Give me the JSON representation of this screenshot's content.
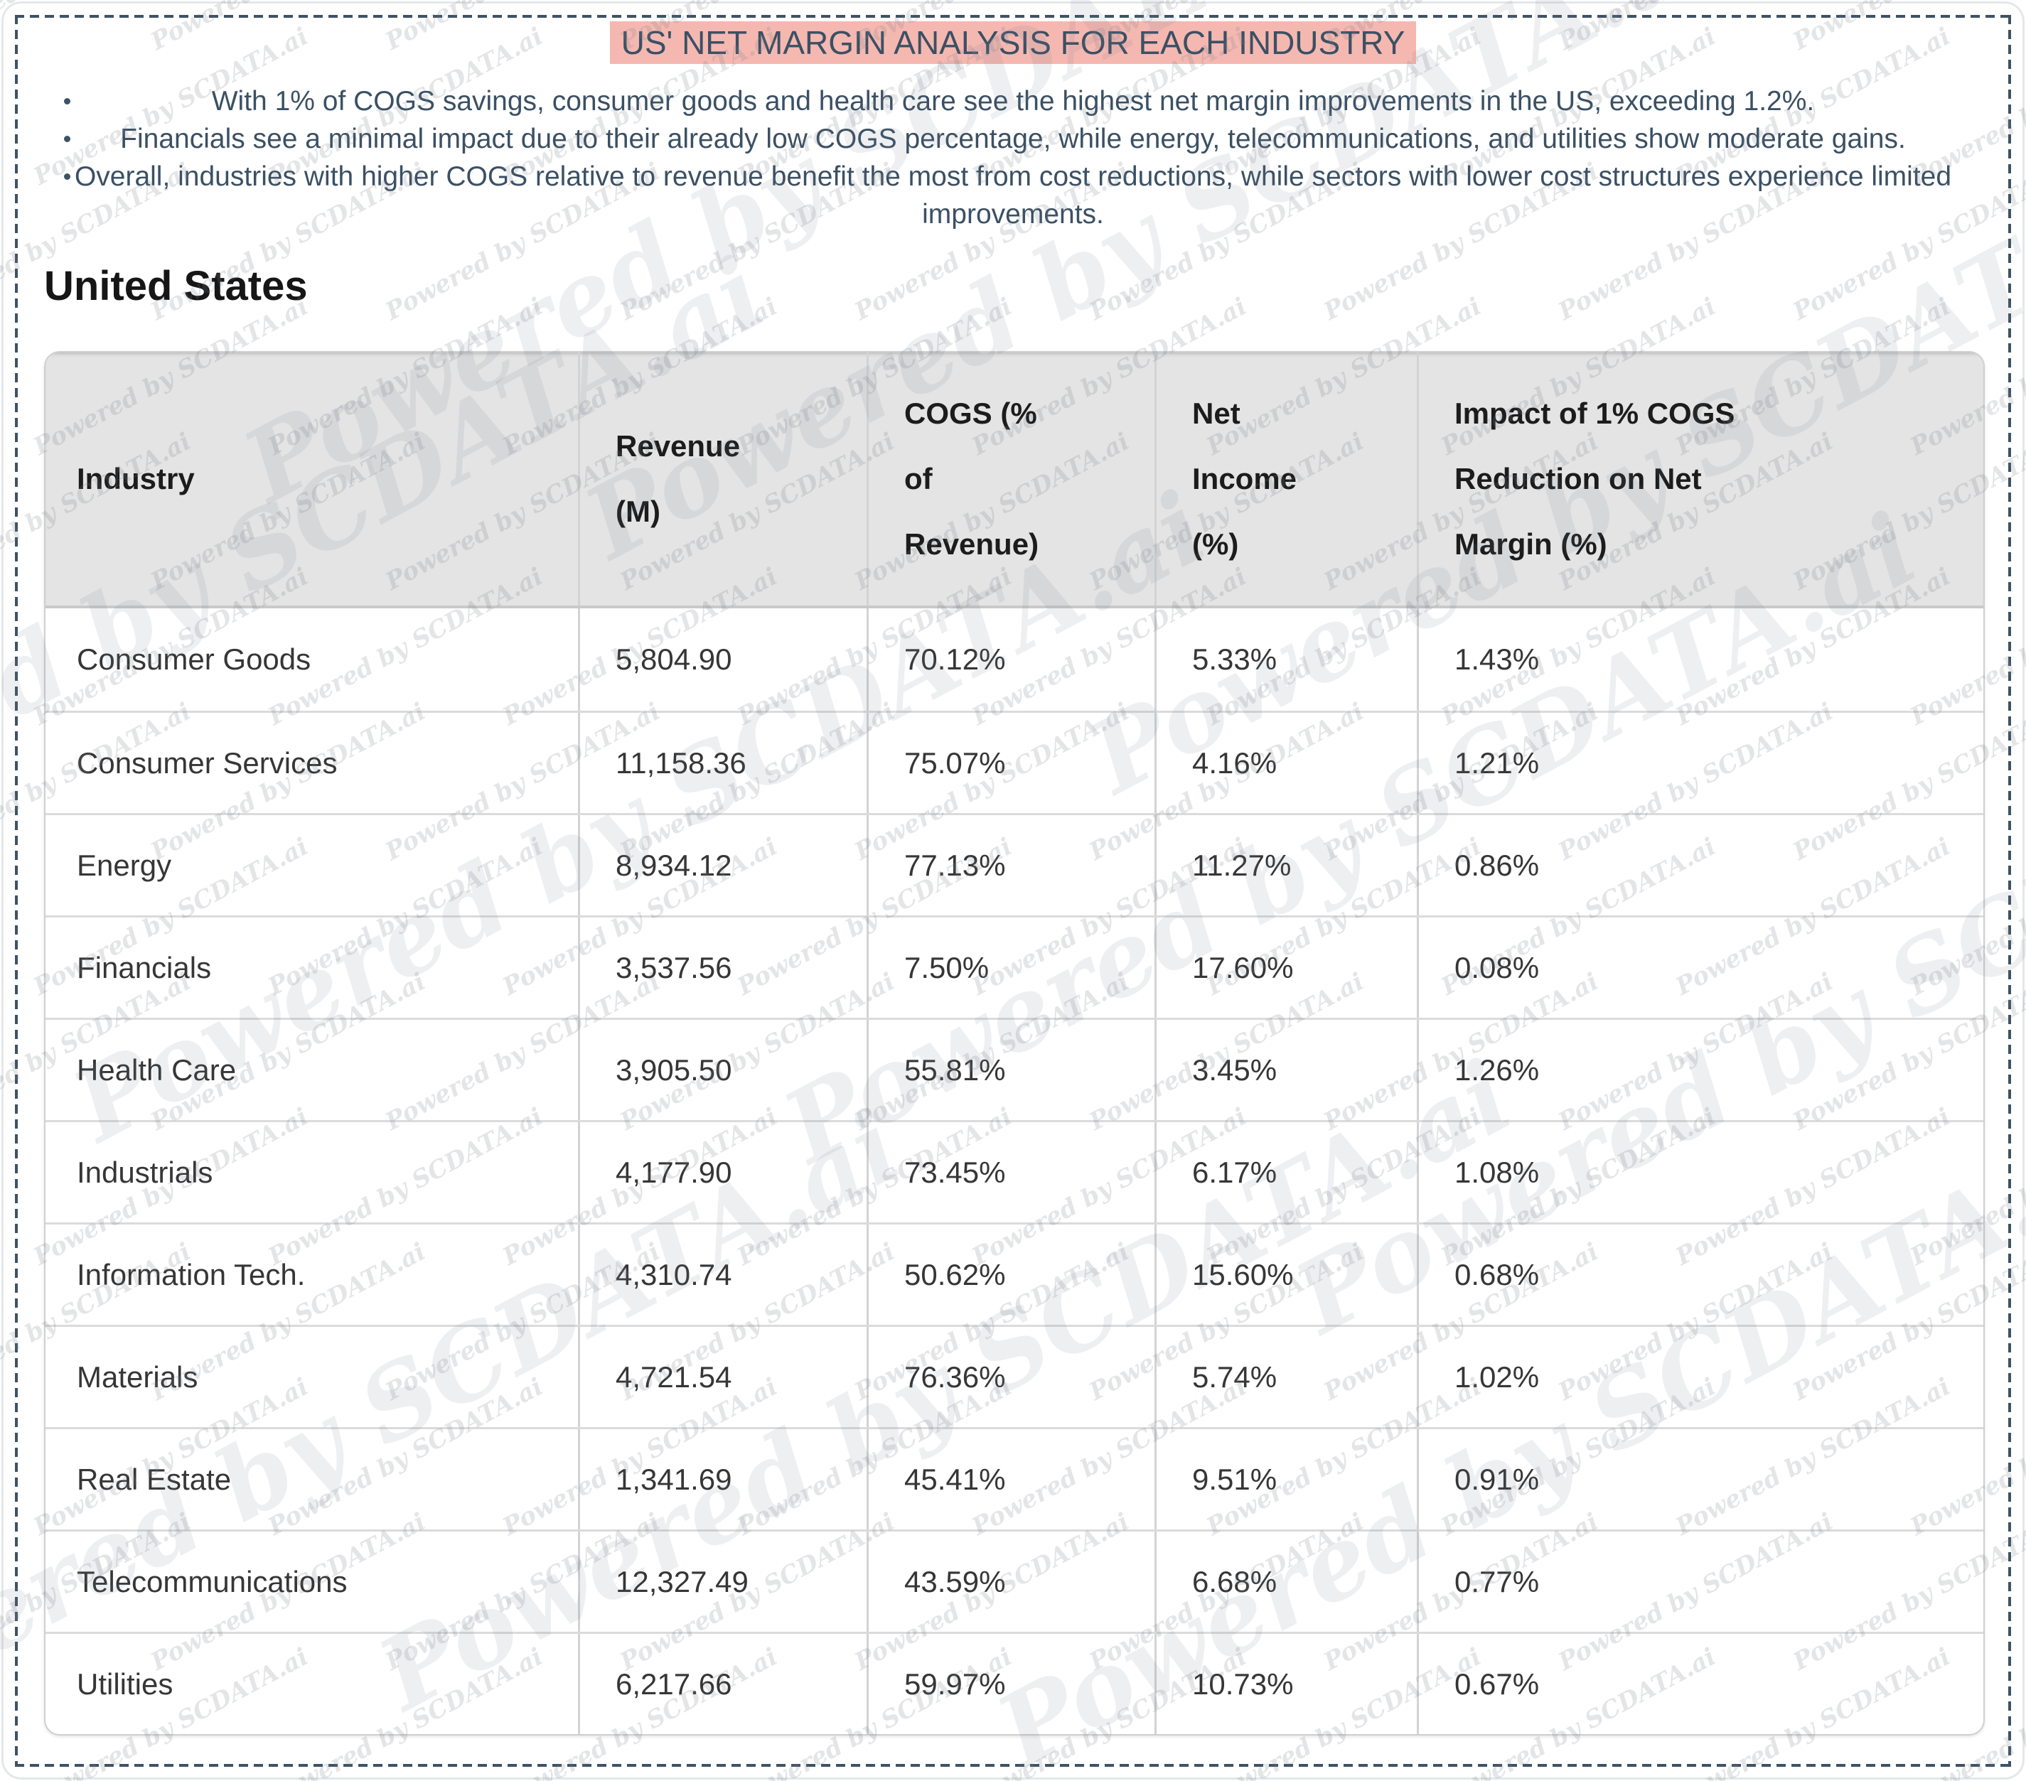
{
  "page": {
    "title": "US' NET MARGIN ANALYSIS FOR EACH INDUSTRY",
    "bullets": [
      [
        "With 1% of COGS savings, consumer goods and health care see the highest net margin improvements in the US, exceeding 1.2%."
      ],
      [
        "Financials see a minimal impact due to their already low COGS percentage, while energy, telecommunications, and utilities show moderate gains."
      ],
      [
        "Overall, industries with higher COGS relative to revenue benefit the most from cost reductions, while sectors with lower cost structures experience limited",
        "improvements."
      ]
    ],
    "section_heading": "United States",
    "watermark": "Powered by SCDATA.ai",
    "colors": {
      "title_highlight": "#f5b8b1",
      "slate_text": "#3b5064",
      "dashed_border": "#3e5265",
      "table_header_bg": "#e4e4e4"
    }
  },
  "table": {
    "columns": [
      "Industry",
      "Revenue (M)",
      "COGS (% of Revenue)",
      "Net Income (%)",
      "Impact of 1% COGS Reduction on Net Margin (%)"
    ],
    "header_lines": [
      [
        "Industry"
      ],
      [
        "Revenue",
        "(M)"
      ],
      [
        "COGS (%",
        "of",
        "Revenue)"
      ],
      [
        "Net",
        "Income",
        "(%)"
      ],
      [
        "Impact of 1% COGS",
        "Reduction on Net",
        "Margin (%)"
      ]
    ],
    "rows": [
      [
        "Consumer Goods",
        "5,804.90",
        "70.12%",
        "5.33%",
        "1.43%"
      ],
      [
        "Consumer Services",
        "11,158.36",
        "75.07%",
        "4.16%",
        "1.21%"
      ],
      [
        "Energy",
        "8,934.12",
        "77.13%",
        "11.27%",
        "0.86%"
      ],
      [
        "Financials",
        "3,537.56",
        "7.50%",
        "17.60%",
        "0.08%"
      ],
      [
        "Health Care",
        "3,905.50",
        "55.81%",
        "3.45%",
        "1.26%"
      ],
      [
        "Industrials",
        "4,177.90",
        "73.45%",
        "6.17%",
        "1.08%"
      ],
      [
        "Information Tech.",
        "4,310.74",
        "50.62%",
        "15.60%",
        "0.68%"
      ],
      [
        "Materials",
        "4,721.54",
        "76.36%",
        "5.74%",
        "1.02%"
      ],
      [
        "Real Estate",
        "1,341.69",
        "45.41%",
        "9.51%",
        "0.91%"
      ],
      [
        "Telecommunications",
        "12,327.49",
        "43.59%",
        "6.68%",
        "0.77%"
      ],
      [
        "Utilities",
        "6,217.66",
        "59.97%",
        "10.73%",
        "0.67%"
      ]
    ]
  }
}
